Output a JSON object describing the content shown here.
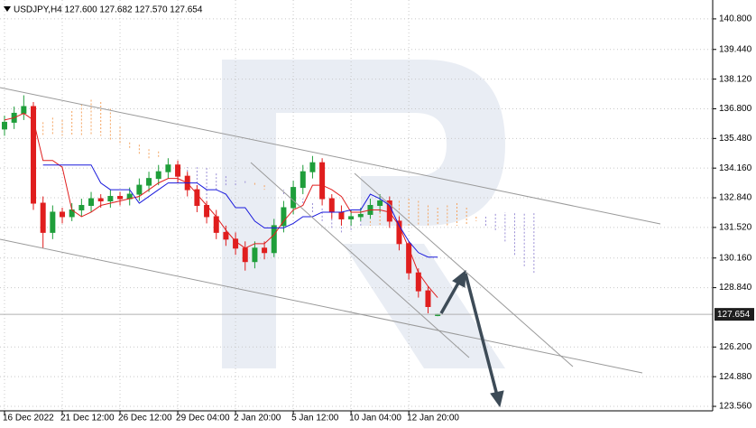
{
  "chart_data": {
    "type": "candlestick",
    "title": "USDJPY,H4  127.600 127.682 127.570 127.654",
    "categories": [
      "16 Dec 2022",
      null,
      null,
      null,
      null,
      null,
      "21 Dec 12:00",
      null,
      null,
      null,
      null,
      null,
      "26 Dec 12:00",
      null,
      null,
      null,
      null,
      null,
      "29 Dec 04:00",
      null,
      null,
      null,
      null,
      null,
      "2 Jan 20:00",
      null,
      null,
      null,
      null,
      null,
      "5 Jan 12:00",
      null,
      null,
      null,
      null,
      null,
      "10 Jan 04:00",
      null,
      null,
      null,
      null,
      null,
      "12 Jan 20:00",
      null,
      null,
      null,
      null,
      null,
      null,
      null,
      null,
      null,
      null,
      null,
      null,
      null
    ],
    "open": [
      135.9,
      136.2,
      136.6,
      136.9,
      132.6,
      131.3,
      132.2,
      132.0,
      132.3,
      132.5,
      132.8,
      132.7,
      132.9,
      132.8,
      133.0,
      133.4,
      133.7,
      134.0,
      134.3,
      133.8,
      133.2,
      132.5,
      132.0,
      131.3,
      131.0,
      130.6,
      130.0,
      130.6,
      130.4,
      131.6,
      132.4,
      133.3,
      134.0,
      134.4,
      132.8,
      132.2,
      131.9,
      132.0,
      132.1,
      132.5,
      132.7,
      131.8,
      130.8,
      129.5,
      128.7,
      127.6,
      null,
      null,
      null,
      null,
      null,
      null,
      null,
      null,
      null,
      null
    ],
    "high": [
      136.5,
      136.9,
      137.4,
      137.1,
      132.9,
      132.5,
      132.4,
      132.6,
      132.8,
      133.1,
      133.0,
      133.2,
      133.1,
      133.3,
      133.7,
      134.0,
      134.3,
      134.6,
      134.5,
      134.0,
      133.4,
      132.7,
      132.3,
      131.6,
      131.3,
      130.9,
      130.9,
      130.9,
      131.9,
      132.7,
      133.6,
      134.3,
      134.7,
      134.6,
      133.0,
      132.5,
      132.3,
      132.4,
      132.8,
      133.0,
      132.9,
      132.0,
      130.9,
      129.7,
      128.9,
      127.682,
      null,
      null,
      null,
      null,
      null,
      null,
      null,
      null,
      null,
      null
    ],
    "low": [
      135.6,
      135.9,
      136.3,
      132.3,
      130.6,
      131.0,
      131.7,
      131.8,
      132.0,
      132.2,
      132.4,
      132.4,
      132.5,
      132.5,
      132.7,
      133.1,
      133.4,
      133.7,
      133.5,
      132.9,
      132.2,
      131.7,
      131.0,
      130.7,
      130.3,
      129.6,
      129.7,
      130.1,
      130.2,
      131.3,
      132.1,
      133.0,
      133.7,
      132.5,
      131.9,
      131.6,
      131.6,
      131.8,
      131.9,
      132.2,
      131.5,
      130.5,
      129.2,
      128.4,
      127.7,
      127.57,
      null,
      null,
      null,
      null,
      null,
      null,
      null,
      null,
      null,
      null
    ],
    "close": [
      136.2,
      136.6,
      136.9,
      132.6,
      131.3,
      132.2,
      132.0,
      132.3,
      132.5,
      132.8,
      132.7,
      132.9,
      132.8,
      133.0,
      133.4,
      133.7,
      134.0,
      134.3,
      133.8,
      133.2,
      132.5,
      132.0,
      131.3,
      131.0,
      130.6,
      130.0,
      130.6,
      130.4,
      131.6,
      132.4,
      133.3,
      134.0,
      134.4,
      132.8,
      132.2,
      131.9,
      132.0,
      132.1,
      132.5,
      132.7,
      131.8,
      130.8,
      129.5,
      128.7,
      128.0,
      127.654,
      null,
      null,
      null,
      null,
      null,
      null,
      null,
      null,
      null,
      null
    ],
    "up_color": "#1f9e3a",
    "down_color": "#e01e1e",
    "overlays": [
      {
        "color": "#e01e1e",
        "values": [
          136.3,
          136.4,
          136.6,
          136.3,
          134.5,
          134.5,
          134.2,
          132.3,
          132.0,
          132.2,
          132.5,
          132.6,
          132.7,
          132.8,
          132.9,
          133.2,
          133.5,
          133.7,
          133.7,
          133.5,
          133.0,
          132.5,
          132.0,
          131.4,
          130.9,
          130.6,
          130.8,
          130.8,
          131.2,
          131.8,
          132.3,
          132.5,
          133.4,
          133.4,
          133.2,
          132.9,
          132.2,
          132.2,
          132.3,
          132.3,
          132.2,
          131.6,
          130.6,
          129.5,
          128.9,
          128.4,
          null,
          null,
          null,
          null,
          null,
          null,
          null,
          null,
          null,
          null
        ]
      },
      {
        "color": "#1a1adc",
        "values": [
          null,
          null,
          null,
          null,
          134.3,
          134.3,
          134.3,
          134.3,
          134.3,
          134.3,
          133.5,
          133.2,
          133.2,
          133.2,
          132.6,
          132.9,
          133.2,
          133.5,
          133.5,
          133.5,
          133.5,
          133.2,
          133.2,
          133.0,
          132.4,
          132.4,
          131.8,
          131.5,
          131.5,
          131.5,
          131.7,
          132.0,
          132.0,
          132.2,
          132.2,
          132.2,
          132.3,
          132.3,
          133.0,
          132.8,
          132.5,
          131.6,
          130.9,
          130.4,
          130.2,
          130.2,
          null,
          null,
          null,
          null,
          null,
          null,
          null,
          null,
          null,
          null
        ]
      }
    ],
    "cloud": {
      "up_color": "#f4a460",
      "down_color": "#9b8fd6",
      "span_a": [
        null,
        null,
        null,
        null,
        136.2,
        136.4,
        136.3,
        136.7,
        137.0,
        137.2,
        137.1,
        136.8,
        136.0,
        135.3,
        135.2,
        135.0,
        134.9,
        134.1,
        133.6,
        133.2,
        133.0,
        132.8,
        133.2,
        133.4,
        133.4,
        133.5,
        133.5,
        133.4,
        133.2,
        133.0,
        132.8,
        132.6,
        132.2,
        131.8,
        131.5,
        131.3,
        131.4,
        131.6,
        131.8,
        132.2,
        132.4,
        132.7,
        132.8,
        132.7,
        132.5,
        132.4,
        132.5,
        132.6,
        132.4,
        132.0,
        131.6,
        131.4,
        130.9,
        130.3,
        129.8,
        129.5
      ],
      "span_b": [
        null,
        null,
        null,
        null,
        135.6,
        135.6,
        135.6,
        135.6,
        135.6,
        135.6,
        135.6,
        135.4,
        135.2,
        135.0,
        134.8,
        134.6,
        134.6,
        134.2,
        134.2,
        134.2,
        134.2,
        134.2,
        134.0,
        133.8,
        133.6,
        133.6,
        133.4,
        133.2,
        133.2,
        133.2,
        133.0,
        132.8,
        132.6,
        132.4,
        132.2,
        132.0,
        132.0,
        131.8,
        131.6,
        131.6,
        131.6,
        131.6,
        131.6,
        131.6,
        131.6,
        131.6,
        131.6,
        131.6,
        131.6,
        131.8,
        132.0,
        132.2,
        132.2,
        132.2,
        132.2,
        132.2
      ]
    },
    "last_price": 127.654,
    "ylim": [
      123.36,
      141.64
    ],
    "yticks": [
      {
        "value": 140.8,
        "label": "140.800"
      },
      {
        "value": 139.44,
        "label": "139.440"
      },
      {
        "value": 138.12,
        "label": "138.120"
      },
      {
        "value": 136.8,
        "label": "136.800"
      },
      {
        "value": 135.48,
        "label": "135.480"
      },
      {
        "value": 134.16,
        "label": "134.160"
      },
      {
        "value": 132.84,
        "label": "132.840"
      },
      {
        "value": 131.52,
        "label": "131.520"
      },
      {
        "value": 130.16,
        "label": "130.160"
      },
      {
        "value": 128.84,
        "label": "128.840"
      },
      {
        "value": 126.2,
        "label": "126.200"
      },
      {
        "value": 124.88,
        "label": "124.880"
      },
      {
        "value": 123.56,
        "label": "123.560"
      }
    ],
    "grid": true
  }
}
